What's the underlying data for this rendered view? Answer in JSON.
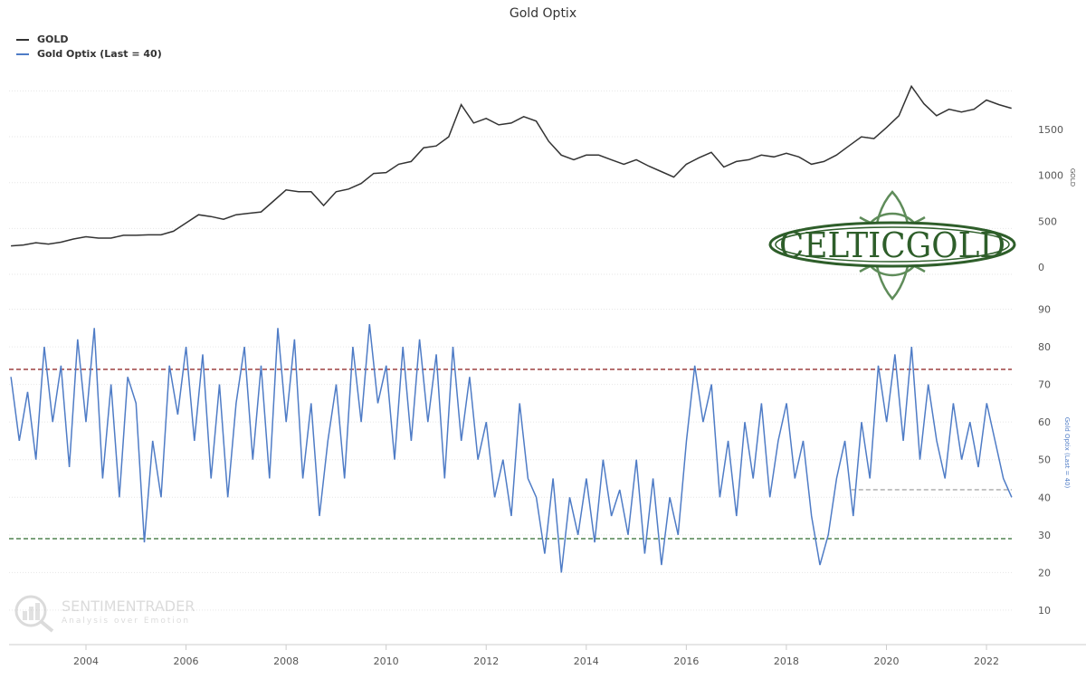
{
  "chart_data": [
    {
      "type": "line",
      "title": "Gold Optix",
      "ylabel": "GOLD",
      "ylim": [
        0,
        2000
      ],
      "yticks": [
        "0",
        "500",
        "1000",
        "1500"
      ],
      "grid": true,
      "legend": "top-left",
      "series": [
        {
          "name": "GOLD",
          "color": "#333333",
          "x": [
            2002.5,
            2002.75,
            2003,
            2003.25,
            2003.5,
            2003.75,
            2004,
            2004.25,
            2004.5,
            2004.75,
            2005,
            2005.25,
            2005.5,
            2005.75,
            2006,
            2006.25,
            2006.5,
            2006.75,
            2007,
            2007.25,
            2007.5,
            2007.75,
            2008,
            2008.25,
            2008.5,
            2008.75,
            2009,
            2009.25,
            2009.5,
            2009.75,
            2010,
            2010.25,
            2010.5,
            2010.75,
            2011,
            2011.25,
            2011.5,
            2011.75,
            2012,
            2012.25,
            2012.5,
            2012.75,
            2013,
            2013.25,
            2013.5,
            2013.75,
            2014,
            2014.25,
            2014.5,
            2014.75,
            2015,
            2015.25,
            2015.5,
            2015.75,
            2016,
            2016.25,
            2016.5,
            2016.75,
            2017,
            2017.25,
            2017.5,
            2017.75,
            2018,
            2018.25,
            2018.5,
            2018.75,
            2019,
            2019.25,
            2019.5,
            2019.75,
            2020,
            2020.25,
            2020.5,
            2020.75,
            2021,
            2021.25,
            2021.5,
            2021.75,
            2022,
            2022.25,
            2022.5
          ],
          "values": [
            310,
            320,
            345,
            330,
            350,
            385,
            410,
            395,
            395,
            425,
            425,
            430,
            430,
            470,
            560,
            650,
            630,
            600,
            650,
            665,
            680,
            800,
            920,
            900,
            900,
            750,
            900,
            930,
            990,
            1100,
            1110,
            1200,
            1230,
            1380,
            1400,
            1500,
            1850,
            1650,
            1700,
            1630,
            1650,
            1720,
            1670,
            1450,
            1300,
            1250,
            1300,
            1300,
            1250,
            1200,
            1250,
            1180,
            1120,
            1060,
            1200,
            1270,
            1330,
            1170,
            1230,
            1250,
            1300,
            1280,
            1320,
            1280,
            1200,
            1230,
            1300,
            1400,
            1500,
            1480,
            1600,
            1730,
            2050,
            1860,
            1730,
            1800,
            1770,
            1800,
            1900,
            1850,
            1810
          ]
        }
      ]
    },
    {
      "type": "line",
      "ylabel": "Gold Optix (Last = 40)",
      "ylim": [
        5,
        95
      ],
      "yticks": [
        "10",
        "20",
        "30",
        "40",
        "50",
        "60",
        "70",
        "80",
        "90"
      ],
      "xticks": [
        "2004",
        "2006",
        "2008",
        "2010",
        "2012",
        "2014",
        "2016",
        "2018",
        "2020",
        "2022"
      ],
      "grid": true,
      "reference_lines": [
        {
          "value": 74,
          "color": "#8b1a1a",
          "style": "dashed"
        },
        {
          "value": 29,
          "color": "#2e6b2e",
          "style": "dashed"
        },
        {
          "value": 42,
          "color": "#aaaaaa",
          "style": "dashed",
          "from": 2019.3
        }
      ],
      "series": [
        {
          "name": "Gold Optix (Last = 40)",
          "color": "#4f7cc6",
          "x_start": 2002.5,
          "x_step_years": 0.1667,
          "values": [
            72,
            55,
            68,
            50,
            80,
            60,
            75,
            48,
            82,
            60,
            85,
            45,
            70,
            40,
            72,
            65,
            28,
            55,
            40,
            75,
            62,
            80,
            55,
            78,
            45,
            70,
            40,
            65,
            80,
            50,
            75,
            45,
            85,
            60,
            82,
            45,
            65,
            35,
            55,
            70,
            45,
            80,
            60,
            86,
            65,
            75,
            50,
            80,
            55,
            82,
            60,
            78,
            45,
            80,
            55,
            72,
            50,
            60,
            40,
            50,
            35,
            65,
            45,
            40,
            25,
            45,
            20,
            40,
            30,
            45,
            28,
            50,
            35,
            42,
            30,
            50,
            25,
            45,
            22,
            40,
            30,
            55,
            75,
            60,
            70,
            40,
            55,
            35,
            60,
            45,
            65,
            40,
            55,
            65,
            45,
            55,
            35,
            22,
            30,
            45,
            55,
            35,
            60,
            45,
            75,
            60,
            78,
            55,
            80,
            50,
            70,
            55,
            45,
            65,
            50,
            60,
            48,
            65,
            55,
            45,
            40
          ]
        }
      ]
    }
  ],
  "logo": {
    "text": "CELTICGOLD",
    "color": "#2e5e2a"
  },
  "watermark": {
    "name": "SENTIMENTRADER",
    "tagline": "Analysis over Emotion"
  }
}
